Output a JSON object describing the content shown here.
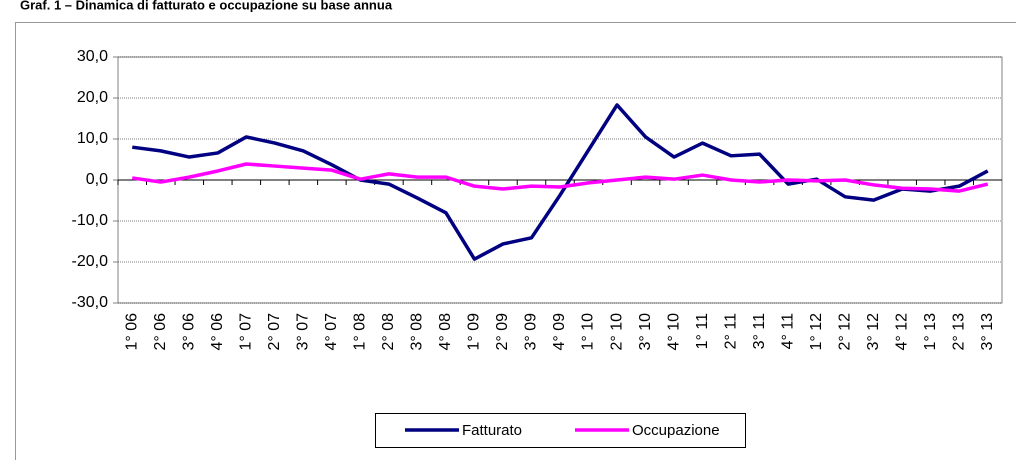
{
  "chart_data": {
    "type": "line",
    "title": "Graf. 1 – Dinamica di fatturato e occupazione su base annua",
    "categories": [
      "1° 06",
      "2° 06",
      "3° 06",
      "4° 06",
      "1° 07",
      "2° 07",
      "3° 07",
      "4° 07",
      "1° 08",
      "2° 08",
      "3° 08",
      "4° 08",
      "1° 09",
      "2° 09",
      "3° 09",
      "4° 09",
      "1° 10",
      "2° 10",
      "3° 10",
      "4° 10",
      "1° 11",
      "2° 11",
      "3° 11",
      "4° 11",
      "1° 12",
      "2° 12",
      "3° 12",
      "4° 12",
      "1° 13",
      "2° 13",
      "3° 13"
    ],
    "series": [
      {
        "name": "Fatturato",
        "color": "#000080",
        "values": [
          8.0,
          7.1,
          5.6,
          6.6,
          10.5,
          9.0,
          7.1,
          3.7,
          0.0,
          -1.0,
          -4.4,
          -8.0,
          -19.3,
          -15.6,
          -14.1,
          -3.7,
          7.3,
          18.3,
          10.5,
          5.6,
          9.0,
          5.9,
          6.3,
          -1.0,
          0.2,
          -4.1,
          -4.9,
          -2.2,
          -2.7,
          -1.5,
          2.2
        ]
      },
      {
        "name": "Occupazione",
        "color": "#ff00ff",
        "values": [
          0.5,
          -0.5,
          0.7,
          2.2,
          3.9,
          3.4,
          2.9,
          2.4,
          0.2,
          1.5,
          0.7,
          0.7,
          -1.5,
          -2.2,
          -1.5,
          -1.7,
          -0.7,
          0.0,
          0.7,
          0.2,
          1.2,
          0.0,
          -0.5,
          0.0,
          -0.2,
          0.0,
          -1.2,
          -2.0,
          -2.2,
          -2.7,
          -1.0
        ]
      }
    ],
    "ylim": [
      -30,
      30
    ],
    "yticks": [
      {
        "value": -30,
        "label": "-30,0"
      },
      {
        "value": -20,
        "label": "-20,0"
      },
      {
        "value": -10,
        "label": "-10,0"
      },
      {
        "value": 0,
        "label": "0,0"
      },
      {
        "value": 10,
        "label": "10,0"
      },
      {
        "value": 20,
        "label": "20,0"
      },
      {
        "value": 30,
        "label": "30,0"
      }
    ],
    "grid": true,
    "legend": "bottom"
  }
}
